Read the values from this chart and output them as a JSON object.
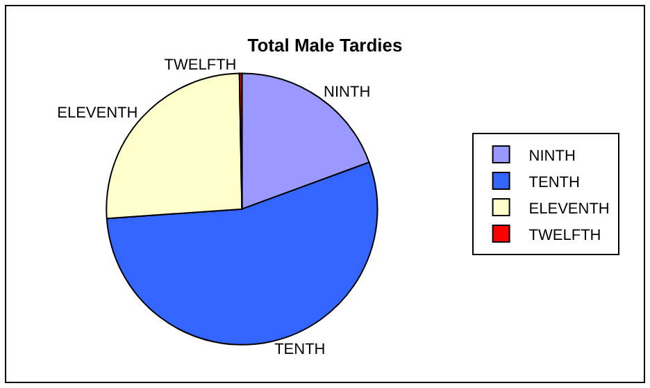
{
  "chart_data": {
    "type": "pie",
    "title": "Total Male Tardies",
    "categories": [
      "NINTH",
      "TENTH",
      "ELEVENTH",
      "TWELFTH"
    ],
    "values": [
      19.4,
      54.5,
      25.8,
      0.3
    ],
    "colors": [
      "#9999ff",
      "#3366ff",
      "#ffffcc",
      "#ff0000"
    ],
    "legend": "right"
  }
}
